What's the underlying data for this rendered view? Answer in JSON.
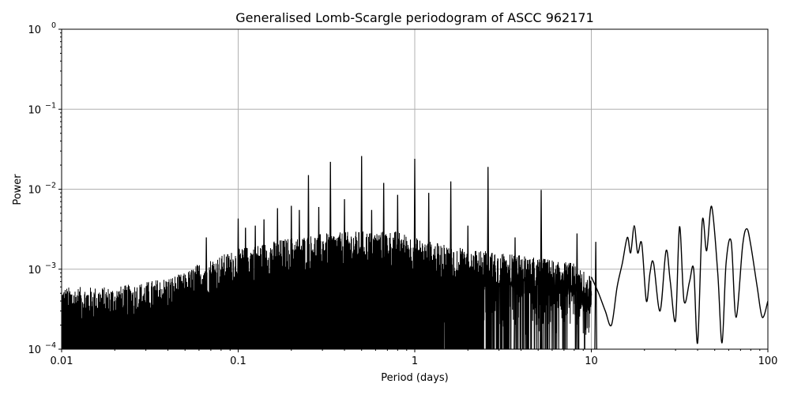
{
  "chart_data": {
    "type": "line",
    "title": "Generalised Lomb-Scargle periodogram of ASCC 962171",
    "xlabel": "Period (days)",
    "ylabel": "Power",
    "xscale": "log",
    "yscale": "log",
    "xlim": [
      0.01,
      100
    ],
    "ylim": [
      0.0001,
      1
    ],
    "grid": true,
    "legend": null,
    "x_ticks": [
      {
        "value": 0.01,
        "label": "0.01"
      },
      {
        "value": 0.1,
        "label": "0.1"
      },
      {
        "value": 1,
        "label": "1"
      },
      {
        "value": 10,
        "label": "10"
      },
      {
        "value": 100,
        "label": "100"
      }
    ],
    "y_ticks": [
      {
        "value": 0.0001,
        "base": "10",
        "exp": "−4"
      },
      {
        "value": 0.001,
        "base": "10",
        "exp": "−3"
      },
      {
        "value": 0.01,
        "base": "10",
        "exp": "−2"
      },
      {
        "value": 0.1,
        "base": "10",
        "exp": "−1"
      },
      {
        "value": 1,
        "base": "10",
        "exp": "0"
      }
    ],
    "line_color": "#000000",
    "grid_color": "#b0b0b0",
    "noise_floor_envelope": {
      "description": "Dense oscillating periodogram filling from 1e-4 up to envelope",
      "x": [
        0.01,
        0.02,
        0.03,
        0.04,
        0.05,
        0.06,
        0.08,
        0.1,
        0.15,
        0.2,
        0.3,
        0.5,
        0.8,
        1.0,
        1.5,
        2.0,
        3.0,
        5.0,
        8.0,
        10.0
      ],
      "y": [
        0.0006,
        0.0006,
        0.0007,
        0.0008,
        0.0009,
        0.0012,
        0.0015,
        0.0018,
        0.0022,
        0.0025,
        0.0028,
        0.003,
        0.003,
        0.0025,
        0.002,
        0.0018,
        0.0016,
        0.0014,
        0.0012,
        0.0008
      ]
    },
    "prominent_peaks": [
      {
        "period": 0.066,
        "power": 0.0025
      },
      {
        "period": 0.1,
        "power": 0.0043
      },
      {
        "period": 0.11,
        "power": 0.0033
      },
      {
        "period": 0.125,
        "power": 0.0035
      },
      {
        "period": 0.14,
        "power": 0.0042
      },
      {
        "period": 0.167,
        "power": 0.0058
      },
      {
        "period": 0.2,
        "power": 0.0062
      },
      {
        "period": 0.222,
        "power": 0.0055
      },
      {
        "period": 0.25,
        "power": 0.015
      },
      {
        "period": 0.286,
        "power": 0.006
      },
      {
        "period": 0.333,
        "power": 0.022
      },
      {
        "period": 0.4,
        "power": 0.0075
      },
      {
        "period": 0.5,
        "power": 0.026
      },
      {
        "period": 0.57,
        "power": 0.0055
      },
      {
        "period": 0.667,
        "power": 0.012
      },
      {
        "period": 0.8,
        "power": 0.0085
      },
      {
        "period": 1.0,
        "power": 0.024
      },
      {
        "period": 1.2,
        "power": 0.009
      },
      {
        "period": 1.6,
        "power": 0.0125
      },
      {
        "period": 2.0,
        "power": 0.0035
      },
      {
        "period": 2.6,
        "power": 0.019
      },
      {
        "period": 3.7,
        "power": 0.0025
      },
      {
        "period": 5.2,
        "power": 0.0098
      },
      {
        "period": 8.3,
        "power": 0.0028
      },
      {
        "period": 10.6,
        "power": 0.0022
      }
    ],
    "long_period_curve": {
      "x": [
        10,
        11,
        12,
        13,
        14,
        15,
        16,
        16.7,
        17.5,
        18.3,
        19.3,
        20.5,
        21.5,
        22.5,
        24.5,
        26.5,
        28,
        30,
        31.6,
        33.5,
        36,
        38,
        40,
        42.5,
        45,
        48,
        52,
        55,
        58,
        62,
        66,
        72,
        76,
        80,
        87,
        93,
        100
      ],
      "y": [
        0.0008,
        0.0005,
        0.0003,
        0.0002,
        0.0006,
        0.0012,
        0.0025,
        0.0016,
        0.0035,
        0.0016,
        0.0021,
        0.0004,
        0.0009,
        0.0012,
        0.0003,
        0.0017,
        0.0007,
        0.00023,
        0.0034,
        0.0004,
        0.0007,
        0.001,
        0.00012,
        0.004,
        0.0017,
        0.0061,
        0.0009,
        0.00012,
        0.0012,
        0.0022,
        0.00025,
        0.002,
        0.0032,
        0.002,
        0.0006,
        0.00025,
        0.0004
      ]
    }
  }
}
